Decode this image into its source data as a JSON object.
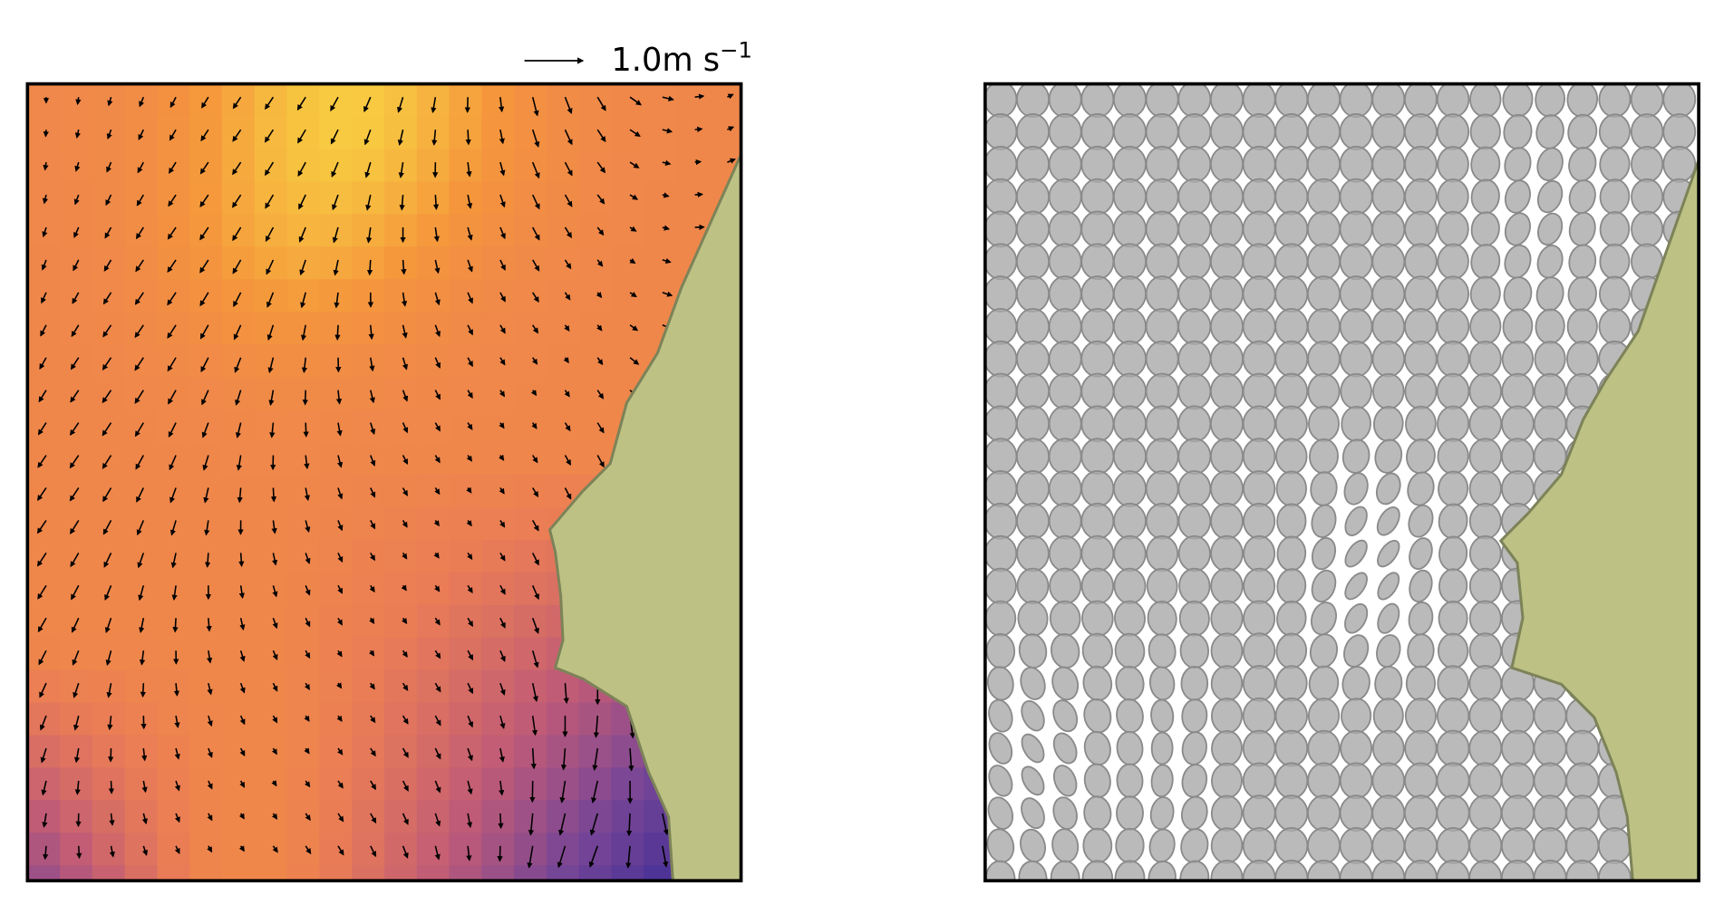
{
  "scale_label": {
    "text": "1.0m s",
    "exponent": "−1"
  }
}
